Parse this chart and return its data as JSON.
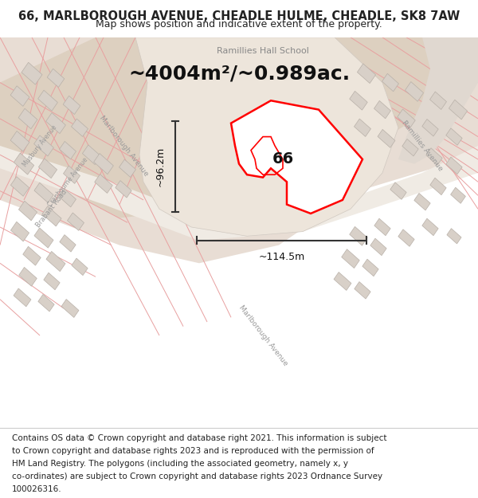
{
  "title": "66, MARLBOROUGH AVENUE, CHEADLE HULME, CHEADLE, SK8 7AW",
  "subtitle": "Map shows position and indicative extent of the property.",
  "area_text": "~4004m²/~0.989ac.",
  "label_66": "66",
  "dim_width": "~114.5m",
  "dim_height": "~96.2m",
  "school_label": "Ramillies Hall School",
  "footer_lines": [
    "Contains OS data © Crown copyright and database right 2021. This information is subject",
    "to Crown copyright and database rights 2023 and is reproduced with the permission of",
    "HM Land Registry. The polygons (including the associated geometry, namely x, y",
    "co-ordinates) are subject to Crown copyright and database rights 2023 Ordnance Survey",
    "100026316."
  ],
  "bg_color": "#ffffff",
  "plot_edge": "#ff0000",
  "title_fontsize": 10.5,
  "subtitle_fontsize": 9,
  "area_fontsize": 18,
  "footer_fontsize": 7.5
}
